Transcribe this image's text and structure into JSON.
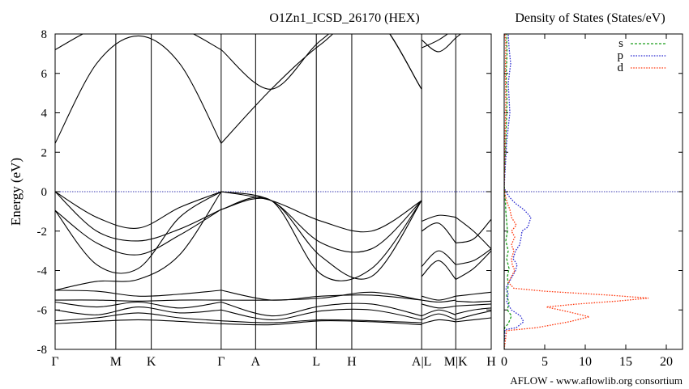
{
  "bands_title": "O1Zn1_ICSD_26170 (HEX)",
  "dos_title": "Density of States (States/eV)",
  "footer": "AFLOW - www.aflowlib.org consortium",
  "chart_data": [
    {
      "type": "line",
      "ylabel": "Energy (eV)",
      "ylim": [
        -8,
        8
      ],
      "y_ticks": [
        -8,
        -6,
        -4,
        -2,
        0,
        2,
        4,
        6,
        8
      ],
      "kpath": [
        {
          "label": "Γ",
          "x": 0
        },
        {
          "label": "M",
          "x": 1.78
        },
        {
          "label": "K",
          "x": 2.82
        },
        {
          "label": "Γ",
          "x": 4.87
        },
        {
          "label": "A",
          "x": 5.88
        },
        {
          "label": "L",
          "x": 7.66
        },
        {
          "label": "H",
          "x": 8.7
        },
        {
          "label": "A|L",
          "x": 10.75
        },
        {
          "label": "M|K",
          "x": 11.75
        },
        {
          "label": "H",
          "x": 12.79
        }
      ],
      "fermi_level": 0,
      "segments": [
        {
          "from": 0,
          "to": 4.87,
          "bands": [
            [
              -6.7,
              -6.58,
              -6.5,
              -6.58,
              -6.7
            ],
            [
              -6.55,
              -6.4,
              -6.15,
              -6.4,
              -6.55
            ],
            [
              -6.0,
              -6.25,
              -5.85,
              -6.15,
              -6.0
            ],
            [
              -5.6,
              -5.85,
              -5.6,
              -5.9,
              -5.6
            ],
            [
              -5.5,
              -5.5,
              -5.55,
              -5.5,
              -5.5
            ],
            [
              -5.0,
              -5.05,
              -5.3,
              -5.2,
              -5.0
            ],
            [
              -5.0,
              -4.55,
              -4.45,
              -3.2,
              0.0
            ],
            [
              -0.95,
              -3.7,
              -3.9,
              -1.3,
              0.0
            ],
            [
              -0.95,
              -2.6,
              -3.2,
              -2.2,
              -0.9
            ],
            [
              0.0,
              -2.0,
              -2.5,
              -1.9,
              -0.9
            ],
            [
              0.0,
              -1.3,
              -1.85,
              -0.8,
              0.0
            ],
            [
              2.45,
              6.5,
              7.9,
              6.5,
              2.45
            ],
            [
              7.2,
              8.3,
              8.5,
              8.3,
              7.2
            ]
          ]
        },
        {
          "from": 4.87,
          "to": 10.75,
          "bands": [
            [
              -6.7,
              -6.75,
              -6.55,
              -6.6,
              -6.75
            ],
            [
              -6.55,
              -6.65,
              -6.5,
              -6.55,
              -6.65
            ],
            [
              -6.0,
              -6.5,
              -6.05,
              -6.0,
              -6.5
            ],
            [
              -5.6,
              -6.3,
              -5.8,
              -5.7,
              -6.3
            ],
            [
              -5.5,
              -5.5,
              -5.4,
              -5.1,
              -5.5
            ],
            [
              -5.0,
              -5.5,
              -5.3,
              -5.25,
              -5.5
            ],
            [
              0.0,
              -0.45,
              -2.6,
              -2.9,
              -0.45
            ],
            [
              0.0,
              -0.45,
              -1.5,
              -2.0,
              -0.45
            ],
            [
              -0.9,
              -0.45,
              -4.2,
              -3.9,
              -0.45
            ],
            [
              -0.9,
              -0.45,
              -3.3,
              -4.3,
              -0.45
            ],
            [
              2.45,
              5.2,
              7.5,
              9.0,
              5.2
            ],
            [
              7.2,
              5.2,
              7.7,
              9.0,
              5.2
            ]
          ]
        },
        {
          "from": 10.75,
          "to": 11.75,
          "bands": [
            [
              -6.7,
              -6.5,
              -6.6
            ],
            [
              -6.5,
              -6.2,
              -6.5
            ],
            [
              -6.3,
              -6.0,
              -6.25
            ],
            [
              -5.7,
              -5.9,
              -5.8
            ],
            [
              -5.5,
              -5.6,
              -5.5
            ],
            [
              -5.3,
              -5.5,
              -5.3
            ],
            [
              -4.3,
              -3.5,
              -4.45
            ],
            [
              -3.8,
              -3.0,
              -3.7
            ],
            [
              -2.0,
              -1.6,
              -2.6
            ],
            [
              -1.5,
              -1.2,
              -1.3
            ],
            [
              7.3,
              7.7,
              8.3
            ],
            [
              7.7,
              7.1,
              7.8
            ]
          ]
        },
        {
          "from": 11.75,
          "to": 12.79,
          "bands": [
            [
              -6.6,
              -6.5,
              -6.4
            ],
            [
              -6.5,
              -6.25,
              -6.05
            ],
            [
              -6.2,
              -6.0,
              -5.9
            ],
            [
              -5.8,
              -5.75,
              -5.7
            ],
            [
              -5.55,
              -5.6,
              -5.55
            ],
            [
              -5.3,
              -5.2,
              -5.1
            ],
            [
              -4.45,
              -3.9,
              -3.0
            ],
            [
              -3.7,
              -3.5,
              -2.9
            ],
            [
              -2.6,
              -2.4,
              -1.4
            ],
            [
              -1.3,
              -2.0,
              -2.9
            ],
            [
              8.1,
              8.5,
              9.0
            ],
            [
              7.8,
              8.5,
              9.0
            ]
          ]
        }
      ]
    },
    {
      "type": "line",
      "xlim": [
        0,
        22
      ],
      "x_ticks": [
        0,
        5,
        10,
        15,
        20
      ],
      "ylim": [
        -8,
        8
      ],
      "fermi_level": 0,
      "legend_position": "top-right",
      "series": [
        {
          "name": "s",
          "color": "#1a9e1a",
          "style": "dashed",
          "points": [
            [
              0,
              -8
            ],
            [
              0.05,
              -6.9
            ],
            [
              0.5,
              -6.7
            ],
            [
              0.9,
              -6.3
            ],
            [
              0.4,
              -6.0
            ],
            [
              0.6,
              -5.6
            ],
            [
              0.3,
              -5.3
            ],
            [
              0.5,
              -4.8
            ],
            [
              0.4,
              -4.3
            ],
            [
              0.6,
              -3.9
            ],
            [
              0.3,
              -3.4
            ],
            [
              0.5,
              -3.0
            ],
            [
              0.2,
              -2.5
            ],
            [
              0.4,
              -2.0
            ],
            [
              0.3,
              -1.5
            ],
            [
              0.2,
              -1.0
            ],
            [
              0.15,
              -0.5
            ],
            [
              0.05,
              0
            ],
            [
              0,
              0.5
            ],
            [
              0.2,
              2.5
            ],
            [
              0.35,
              4.5
            ],
            [
              0.25,
              6.0
            ],
            [
              0.35,
              7.0
            ],
            [
              0.3,
              8.0
            ]
          ]
        },
        {
          "name": "p",
          "color": "#2a2ad0",
          "style": "dotted",
          "points": [
            [
              0,
              -8
            ],
            [
              0.1,
              -7.0
            ],
            [
              1.5,
              -6.9
            ],
            [
              2.4,
              -6.6
            ],
            [
              2.0,
              -6.3
            ],
            [
              0.9,
              -6.0
            ],
            [
              0.3,
              -5.6
            ],
            [
              0.5,
              -5.2
            ],
            [
              0.2,
              -4.9
            ],
            [
              0.6,
              -4.6
            ],
            [
              1.0,
              -4.3
            ],
            [
              1.4,
              -4.0
            ],
            [
              1.6,
              -3.7
            ],
            [
              1.1,
              -3.4
            ],
            [
              1.4,
              -3.0
            ],
            [
              1.9,
              -2.7
            ],
            [
              2.1,
              -2.3
            ],
            [
              2.2,
              -2.0
            ],
            [
              2.9,
              -1.8
            ],
            [
              3.3,
              -1.3
            ],
            [
              2.4,
              -0.9
            ],
            [
              1.4,
              -0.6
            ],
            [
              0.7,
              -0.3
            ],
            [
              0.2,
              0
            ],
            [
              0,
              0.2
            ],
            [
              0.3,
              2.5
            ],
            [
              0.7,
              4.0
            ],
            [
              0.5,
              5.5
            ],
            [
              0.8,
              6.5
            ],
            [
              0.6,
              7.3
            ],
            [
              0.5,
              8.0
            ]
          ]
        },
        {
          "name": "d",
          "color": "#ff3b12",
          "style": "dotted",
          "points": [
            [
              0,
              -8
            ],
            [
              0.3,
              -7.05
            ],
            [
              4,
              -6.9
            ],
            [
              8,
              -6.6
            ],
            [
              10.5,
              -6.35
            ],
            [
              8,
              -6.1
            ],
            [
              5.2,
              -5.85
            ],
            [
              9,
              -5.7
            ],
            [
              14,
              -5.55
            ],
            [
              17.8,
              -5.4
            ],
            [
              13,
              -5.25
            ],
            [
              5,
              -5.05
            ],
            [
              1.2,
              -4.9
            ],
            [
              0.5,
              -4.6
            ],
            [
              0.9,
              -4.3
            ],
            [
              1.3,
              -4.0
            ],
            [
              1.0,
              -3.7
            ],
            [
              0.9,
              -3.4
            ],
            [
              1.2,
              -3.0
            ],
            [
              0.9,
              -2.7
            ],
            [
              1.3,
              -2.3
            ],
            [
              0.9,
              -2.0
            ],
            [
              1.5,
              -1.7
            ],
            [
              0.9,
              -1.3
            ],
            [
              0.7,
              -0.9
            ],
            [
              0.4,
              -0.6
            ],
            [
              0.2,
              -0.3
            ],
            [
              0.05,
              0
            ],
            [
              0,
              0.2
            ],
            [
              0.1,
              2.5
            ],
            [
              0.2,
              4.5
            ],
            [
              0.15,
              6.0
            ],
            [
              0.2,
              7.5
            ],
            [
              0.1,
              8.0
            ]
          ]
        }
      ]
    }
  ]
}
